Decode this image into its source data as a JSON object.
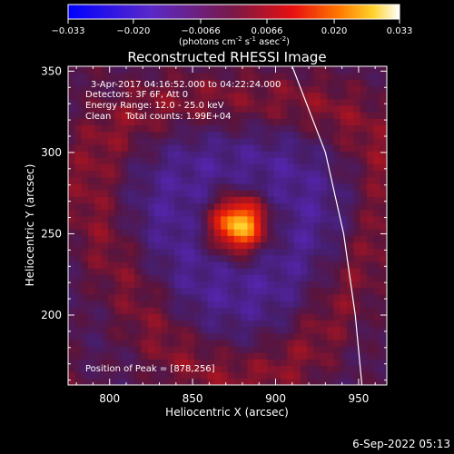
{
  "chart_data": {
    "type": "heatmap",
    "title": "Reconstructed RHESSI Image",
    "xlabel": "Heliocentric X (arcsec)",
    "ylabel": "Heliocentric Y (arcsec)",
    "xlim": [
      775,
      967
    ],
    "ylim": [
      157,
      353
    ],
    "x_ticks": [
      800,
      850,
      900,
      950
    ],
    "y_ticks": [
      200,
      250,
      300,
      350
    ],
    "colorbar": {
      "range": [
        -0.033,
        0.033
      ],
      "ticks": [
        "-0.033",
        "-0.020",
        "-0.0066",
        "0.0066",
        "0.020",
        "0.033"
      ],
      "unit_parts": [
        "(photons cm",
        "-2",
        " s",
        "-1",
        " asec",
        "-2",
        ")"
      ],
      "colormap": "blue-purple-red-orange-yellow-white"
    },
    "annotations": [
      "3-Apr-2017 04:16:52.000 to 04:22:24.000",
      "Detectors: 3F 6F, Att 0",
      "Energy Range: 12.0 - 25.0 keV",
      "Clean     Total counts: 1.99E+04"
    ],
    "peak_label": "Position of Peak = [878,256]",
    "peak": {
      "x": 878,
      "y": 256,
      "value": 0.033
    },
    "limb_curve": {
      "points": [
        [
          910,
          353
        ],
        [
          930,
          300
        ],
        [
          941,
          250
        ],
        [
          948,
          200
        ],
        [
          952,
          157
        ]
      ]
    },
    "timestamp": "6-Sep-2022 05:13"
  },
  "colors": {
    "background": "#000000",
    "foreground": "#ffffff"
  }
}
